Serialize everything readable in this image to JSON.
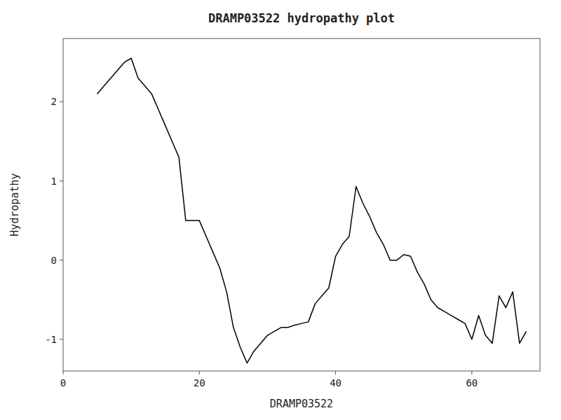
{
  "chart_data": {
    "type": "line",
    "title": "DRAMP03522 hydropathy plot",
    "xlabel": "DRAMP03522",
    "ylabel": "Hydropathy",
    "x": [
      5,
      6,
      7,
      8,
      9,
      10,
      11,
      12,
      13,
      14,
      15,
      16,
      17,
      18,
      19,
      20,
      21,
      22,
      23,
      24,
      25,
      26,
      27,
      28,
      29,
      30,
      31,
      32,
      33,
      34,
      35,
      36,
      37,
      38,
      39,
      40,
      41,
      42,
      43,
      44,
      45,
      46,
      47,
      48,
      49,
      50,
      51,
      52,
      53,
      54,
      55,
      56,
      57,
      58,
      59,
      60,
      61,
      62,
      63,
      64,
      65,
      66,
      67,
      68
    ],
    "values": [
      2.1,
      2.2,
      2.3,
      2.4,
      2.5,
      2.55,
      2.3,
      2.2,
      2.1,
      1.9,
      1.7,
      1.5,
      1.3,
      0.5,
      0.5,
      0.5,
      0.3,
      0.1,
      -0.1,
      -0.4,
      -0.85,
      -1.1,
      -1.3,
      -1.15,
      -1.05,
      -0.95,
      -0.9,
      -0.85,
      -0.85,
      -0.82,
      -0.8,
      -0.78,
      -0.55,
      -0.45,
      -0.35,
      0.05,
      0.2,
      0.3,
      0.93,
      0.72,
      0.55,
      0.35,
      0.2,
      0.0,
      0.0,
      0.07,
      0.05,
      -0.15,
      -0.3,
      -0.5,
      -0.6,
      -0.65,
      -0.7,
      -0.75,
      -0.8,
      -1.0,
      -0.7,
      -0.95,
      -1.05,
      -0.45,
      -0.6,
      -0.4,
      -1.05,
      -0.9
    ],
    "color": "#000000",
    "xlim": [
      0,
      70
    ],
    "ylim": [
      -1.4,
      2.8
    ],
    "xticks": [
      0,
      20,
      40,
      60
    ],
    "yticks": [
      -1,
      0,
      1,
      2
    ],
    "grid": false
  }
}
